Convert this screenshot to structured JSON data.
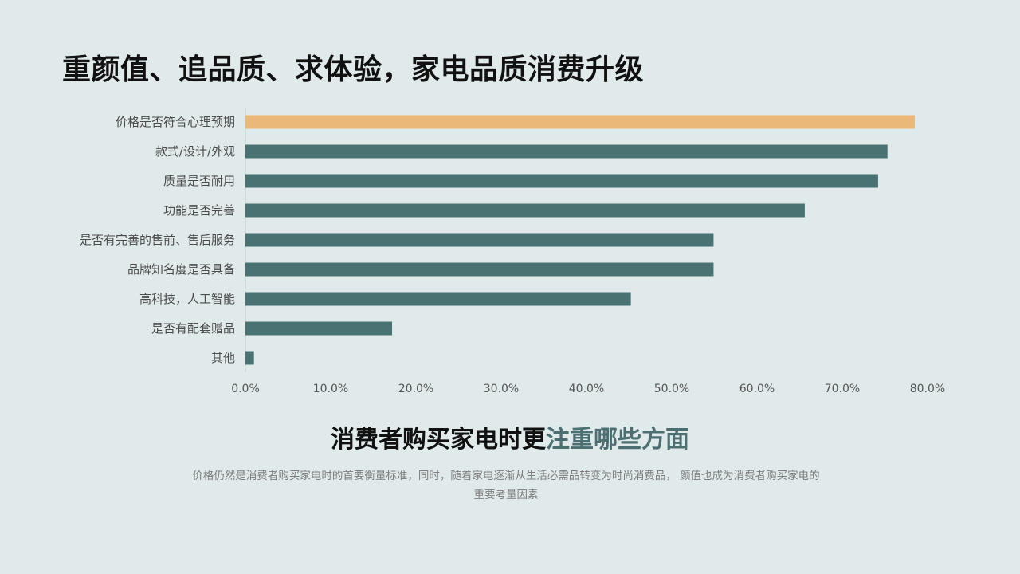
{
  "header": {
    "title": "重颜值、追品质、求体验，家电品质消费升级"
  },
  "chart_data": {
    "type": "bar",
    "orientation": "horizontal",
    "categories": [
      "价格是否符合心理预期",
      "款式/设计/外观",
      "质量是否耐用",
      "功能是否完善",
      "是否有完善的售前、售后服务",
      "品牌知名度是否具备",
      "高科技，人工智能",
      "是否有配套赠品",
      "其他"
    ],
    "values": [
      78.5,
      75.3,
      74.2,
      65.6,
      54.9,
      54.9,
      45.2,
      17.2,
      1.0
    ],
    "highlight_index": 0,
    "xlim": [
      0,
      80
    ],
    "xticks": [
      "0.0%",
      "10.0%",
      "20.0%",
      "30.0%",
      "40.0%",
      "50.0%",
      "60.0%",
      "70.0%",
      "80.0%"
    ],
    "colors": {
      "highlight": "#eab97a",
      "default": "#4a7273"
    },
    "grid": false,
    "legend": "none"
  },
  "footer": {
    "subtitle_main": "消费者购买家电时更",
    "subtitle_accent": "注重哪些方面",
    "description": "价格仍然是消费者购买家电时的首要衡量标准，同时，随着家电逐渐从生活必需品转变为时尚消费品， 颜值也成为消费者购买家电的重要考量因素"
  }
}
